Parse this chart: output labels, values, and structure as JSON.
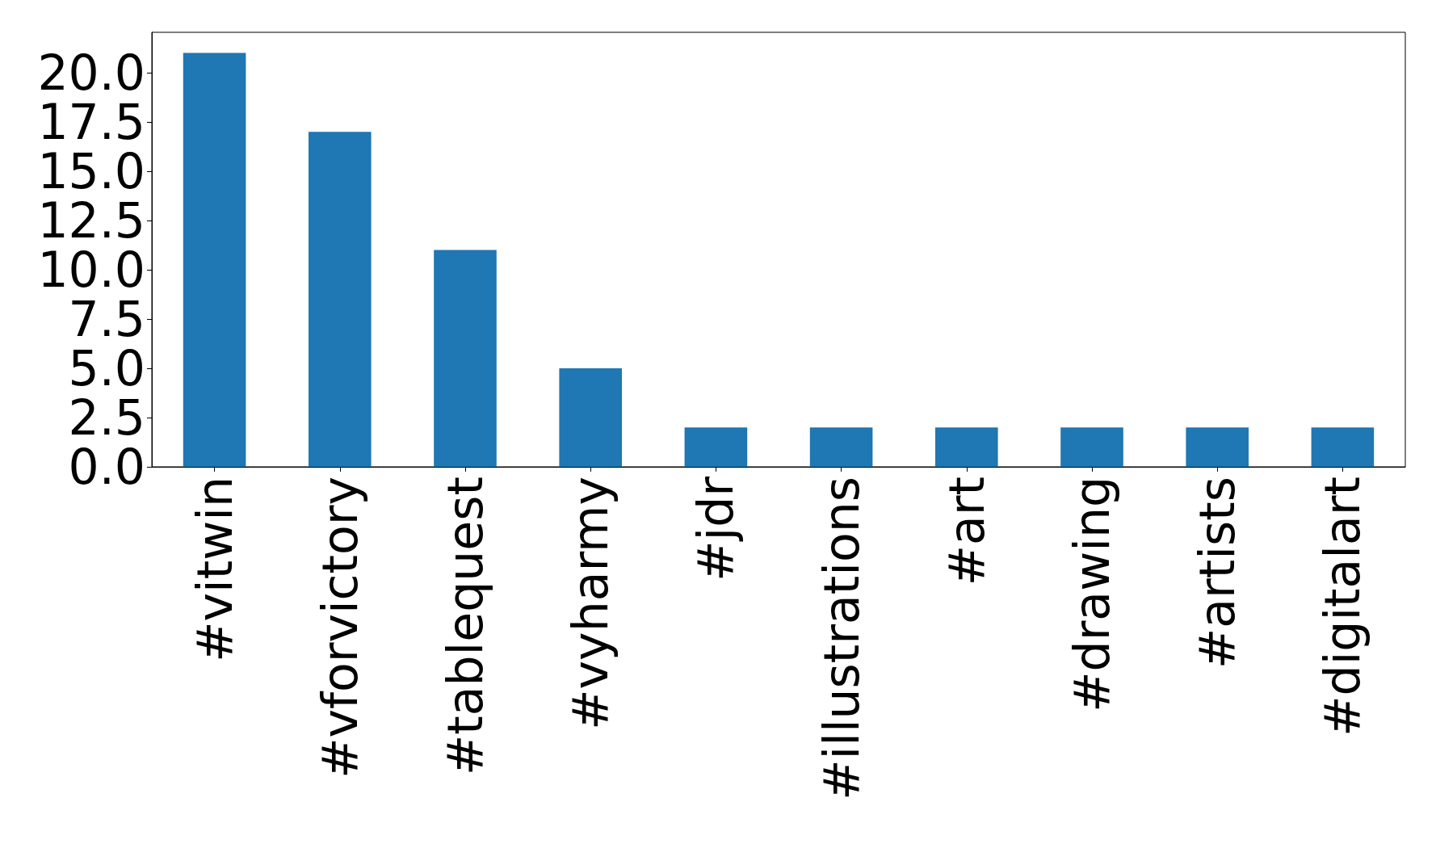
{
  "chart_data": {
    "type": "bar",
    "categories": [
      "#vitwin",
      "#vforvictory",
      "#tablequest",
      "#vyharmy",
      "#jdr",
      "#illustrations",
      "#art",
      "#drawing",
      "#artists",
      "#digitalart"
    ],
    "values": [
      21,
      17,
      11,
      5,
      2,
      2,
      2,
      2,
      2,
      2
    ],
    "color": "#1f77b4",
    "ylim": [
      0,
      22.05
    ],
    "yticks": [
      {
        "value": 0,
        "label": "0.0"
      },
      {
        "value": 2.5,
        "label": "2.5"
      },
      {
        "value": 5,
        "label": "5.0"
      },
      {
        "value": 7.5,
        "label": "7.5"
      },
      {
        "value": 10,
        "label": "10.0"
      },
      {
        "value": 12.5,
        "label": "12.5"
      },
      {
        "value": 15,
        "label": "15.0"
      },
      {
        "value": 17.5,
        "label": "17.5"
      },
      {
        "value": 20,
        "label": "20.0"
      }
    ],
    "grid": false
  }
}
